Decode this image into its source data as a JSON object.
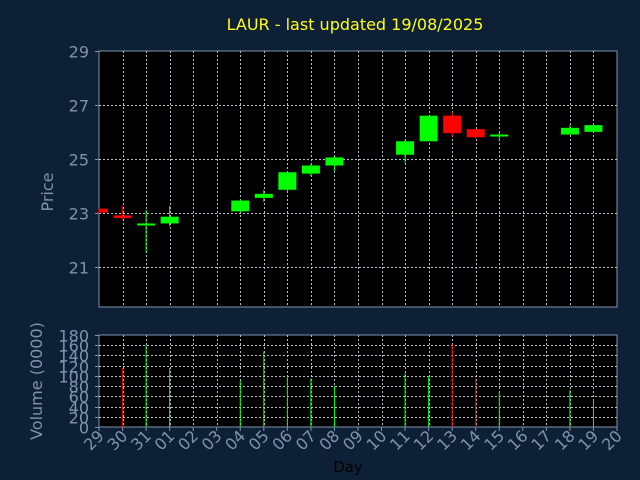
{
  "chart_data": {
    "type": "candlestick",
    "title": "LAUR - last updated 19/08/2025",
    "ylabel": "Price",
    "volume_label": "Volume (0000)",
    "xlabel": "Day",
    "price_ylim": [
      19.5,
      29
    ],
    "price_ticks": [
      "21",
      "23",
      "25",
      "27",
      "29"
    ],
    "volume_ylim": [
      0,
      180
    ],
    "volume_ticks": [
      "0",
      "20",
      "40",
      "60",
      "80",
      "100",
      "120",
      "140",
      "160",
      "180"
    ],
    "grid": true,
    "categories": [
      "29",
      "30",
      "31",
      "01",
      "02",
      "03",
      "04",
      "05",
      "06",
      "07",
      "08",
      "09",
      "10",
      "11",
      "12",
      "13",
      "14",
      "15",
      "16",
      "17",
      "18",
      "19",
      "20"
    ],
    "candles": [
      {
        "day": "29",
        "open": 23.15,
        "high": 23.15,
        "low": 22.95,
        "close": 23.0,
        "volume": 0,
        "color": "#ff0000"
      },
      {
        "day": "30",
        "open": 22.9,
        "high": 23.25,
        "low": 22.75,
        "close": 22.8,
        "volume": 115,
        "color": "#ff0000"
      },
      {
        "day": "31",
        "open": 22.55,
        "high": 23.1,
        "low": 21.5,
        "close": 22.6,
        "volume": 160,
        "color": "#00ff00"
      },
      {
        "day": "01",
        "open": 22.6,
        "high": 23.25,
        "low": 22.5,
        "close": 22.85,
        "volume": 115,
        "color": "#00ff00"
      },
      {
        "day": "04",
        "open": 23.05,
        "high": 23.5,
        "low": 23.0,
        "close": 23.45,
        "volume": 90,
        "color": "#00ff00"
      },
      {
        "day": "05",
        "open": 23.55,
        "high": 23.85,
        "low": 23.4,
        "close": 23.7,
        "volume": 148,
        "color": "#00ff00"
      },
      {
        "day": "06",
        "open": 23.85,
        "high": 24.55,
        "low": 23.8,
        "close": 24.5,
        "volume": 100,
        "color": "#00ff00"
      },
      {
        "day": "07",
        "open": 24.45,
        "high": 24.8,
        "low": 24.35,
        "close": 24.75,
        "volume": 95,
        "color": "#00ff00"
      },
      {
        "day": "08",
        "open": 24.75,
        "high": 25.1,
        "low": 24.55,
        "close": 25.05,
        "volume": 80,
        "color": "#00ff00"
      },
      {
        "day": "11",
        "open": 25.15,
        "high": 25.7,
        "low": 24.85,
        "close": 25.65,
        "volume": 105,
        "color": "#00ff00"
      },
      {
        "day": "12",
        "open": 25.65,
        "high": 26.6,
        "low": 25.65,
        "close": 26.6,
        "volume": 100,
        "color": "#00ff00"
      },
      {
        "day": "13",
        "open": 26.6,
        "high": 26.75,
        "low": 25.8,
        "close": 25.95,
        "volume": 162,
        "color": "#ff0000"
      },
      {
        "day": "14",
        "open": 26.1,
        "high": 26.1,
        "low": 25.75,
        "close": 25.8,
        "volume": 95,
        "color": "#ff0000"
      },
      {
        "day": "15",
        "open": 25.85,
        "high": 26.0,
        "low": 25.65,
        "close": 25.9,
        "volume": 70,
        "color": "#00ff00"
      },
      {
        "day": "18",
        "open": 25.9,
        "high": 26.25,
        "low": 25.9,
        "close": 26.15,
        "volume": 72,
        "color": "#00ff00"
      },
      {
        "day": "19",
        "open": 26.0,
        "high": 26.3,
        "low": 26.0,
        "close": 26.25,
        "volume": 55,
        "color": "#00ff00"
      }
    ],
    "colors": {
      "background": "#0e2036",
      "plot_background": "#000000",
      "grid": "#b8c2cc",
      "axis_text": "#7f93ad",
      "title": "#ffff1a",
      "up": "#00ff00",
      "down": "#ff0000"
    }
  }
}
